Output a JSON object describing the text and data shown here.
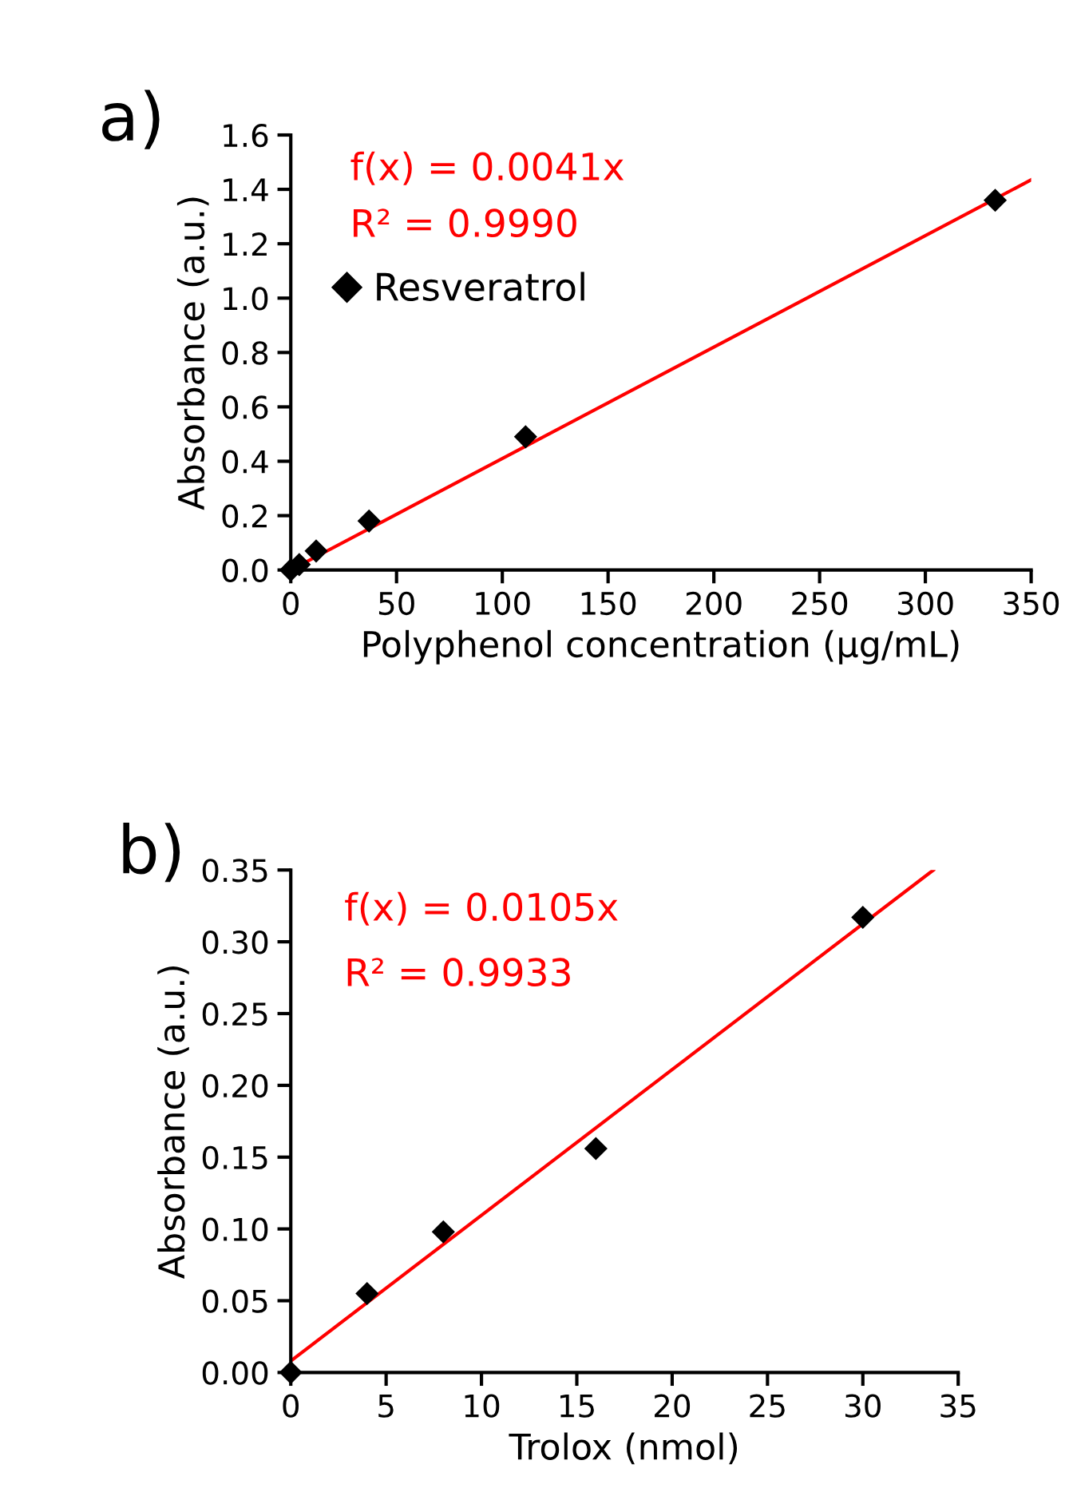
{
  "chart_data": [
    {
      "type": "scatter",
      "title": "a)",
      "xlabel": "Polyphenol concentration (µg/mL)",
      "ylabel": "Absorbance (a.u.)",
      "xlim": [
        0,
        350
      ],
      "xticks": [
        0,
        50,
        100,
        150,
        200,
        250,
        300,
        350
      ],
      "ylim": [
        0,
        1.6
      ],
      "yticks": [
        {
          "value": 0,
          "label": "0.0"
        },
        0.2,
        0.4,
        0.6,
        0.8,
        {
          "value": 1,
          "label": "1.0"
        },
        1.2,
        1.4,
        1.6
      ],
      "annotations": [
        "f(x) = 0.0041x",
        "R² = 0.9990"
      ],
      "legend": "top left",
      "grid": false,
      "series": [
        {
          "name": "Resveratrol",
          "marker": "diamond",
          "color": "#000000",
          "x": [
            0,
            4,
            12,
            37,
            111,
            333
          ],
          "values": [
            0,
            0.02,
            0.07,
            0.18,
            0.49,
            1.36
          ]
        },
        {
          "type": "line",
          "color": "#ff0000",
          "line_style": "solid",
          "marker": "none",
          "x": [
            0,
            350
          ],
          "values": [
            0,
            1.435
          ]
        }
      ]
    },
    {
      "type": "scatter",
      "title": "b)",
      "xlabel": "Trolox (nmol)",
      "ylabel": "Absorbance (a.u.)",
      "xlim": [
        0,
        35
      ],
      "xticks": [
        0,
        5,
        10,
        15,
        20,
        25,
        30,
        35
      ],
      "ylim": [
        0,
        0.35
      ],
      "yticks": [
        {
          "value": 0,
          "label": "0.00"
        },
        0.05,
        {
          "value": 0.1,
          "label": "0.10"
        },
        0.15,
        {
          "value": 0.2,
          "label": "0.20"
        },
        0.25,
        {
          "value": 0.3,
          "label": "0.30"
        },
        0.35
      ],
      "annotations": [
        "f(x) = 0.0105x",
        "R² = 0.9933"
      ],
      "legend": false,
      "grid": false,
      "series": [
        {
          "marker": "diamond",
          "color": "#000000",
          "x": [
            0,
            4,
            8,
            16,
            30
          ],
          "values": [
            0,
            0.055,
            0.098,
            0.156,
            0.317
          ]
        },
        {
          "type": "line",
          "color": "#ff0000",
          "line_style": "solid",
          "marker": "none",
          "x": [
            0,
            33.7
          ],
          "values": [
            0.008,
            0.35
          ]
        }
      ]
    }
  ]
}
